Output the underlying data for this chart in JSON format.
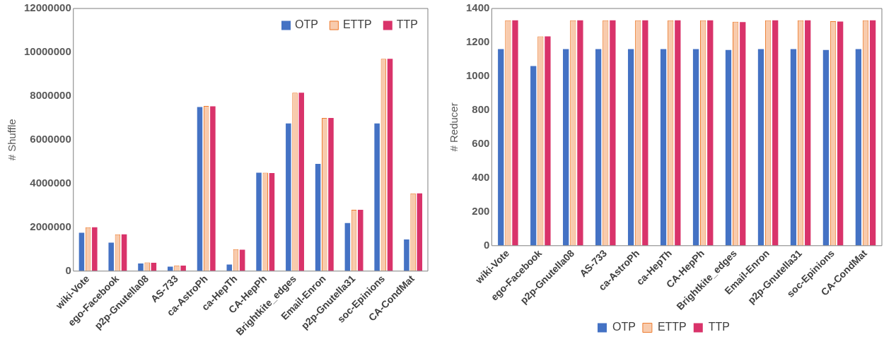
{
  "chart_data": [
    {
      "type": "bar",
      "ylabel": "# Shuffle",
      "categories": [
        "wiki-Vote",
        "ego-Facebook",
        "p2p-Gnutella08",
        "AS-733",
        "ca-AstroPh",
        "ca-HepTh",
        "CA-HepPh",
        "Brightkite_edges",
        "Email-Enron",
        "p2p-Gnutella31",
        "soc-Epinions",
        "CA-CondMat"
      ],
      "series": [
        {
          "name": "OTP",
          "color": "#4472c4",
          "values": [
            1750000,
            1300000,
            350000,
            200000,
            7500000,
            300000,
            4500000,
            6750000,
            4900000,
            2200000,
            6750000,
            1450000
          ]
        },
        {
          "name": "ETTP",
          "color": "#f8cbad",
          "values": [
            2000000,
            1680000,
            400000,
            260000,
            7550000,
            1000000,
            4500000,
            8150000,
            7000000,
            2800000,
            9700000,
            3550000
          ]
        },
        {
          "name": "TTP",
          "color": "#d9336a",
          "values": [
            2000000,
            1680000,
            380000,
            250000,
            7530000,
            980000,
            4480000,
            8150000,
            7000000,
            2800000,
            9700000,
            3550000
          ]
        }
      ],
      "ylim": [
        0,
        12000000
      ],
      "yticks": [
        0,
        2000000,
        4000000,
        6000000,
        8000000,
        10000000,
        12000000
      ],
      "grid": false,
      "legend": "top right"
    },
    {
      "type": "bar",
      "ylabel": "# Reducer",
      "categories": [
        "wiki-Vote",
        "ego-Facebook",
        "p2p-Gnutella08",
        "AS-733",
        "ca-AstroPh",
        "ca-HepTh",
        "CA-HepPh",
        "Brightkite_edges",
        "Email-Enron",
        "p2p-Gnutella31",
        "soc-Epinions",
        "CA-CondMat"
      ],
      "series": [
        {
          "name": "OTP",
          "color": "#4472c4",
          "values": [
            1160,
            1060,
            1160,
            1160,
            1160,
            1160,
            1160,
            1155,
            1160,
            1160,
            1155,
            1160
          ]
        },
        {
          "name": "ETTP",
          "color": "#f8cbad",
          "values": [
            1330,
            1235,
            1330,
            1330,
            1330,
            1330,
            1330,
            1322,
            1330,
            1330,
            1325,
            1330
          ]
        },
        {
          "name": "TTP",
          "color": "#d9336a",
          "values": [
            1330,
            1235,
            1330,
            1330,
            1330,
            1330,
            1330,
            1320,
            1330,
            1330,
            1323,
            1330
          ]
        }
      ],
      "ylim": [
        0,
        1400
      ],
      "yticks": [
        0,
        200,
        400,
        600,
        800,
        1000,
        1200,
        1400
      ],
      "grid": false,
      "legend": "bottom"
    }
  ]
}
